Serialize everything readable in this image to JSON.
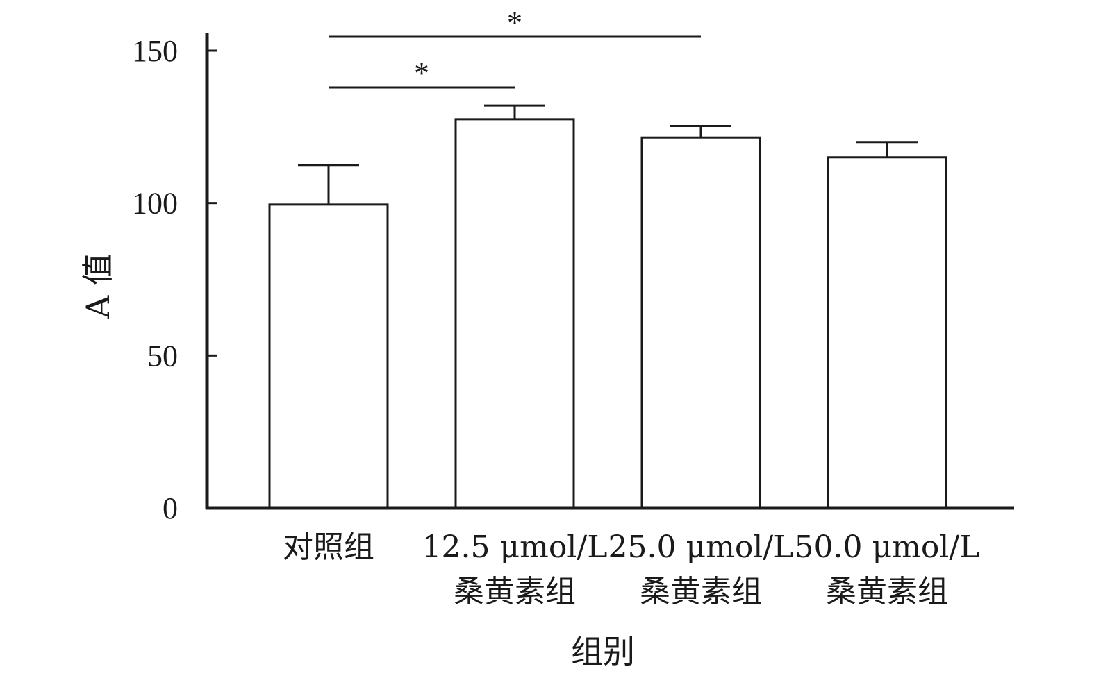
{
  "chart_data": {
    "type": "bar",
    "categories": [
      [
        "对照组"
      ],
      [
        "12.5 μmol/L",
        "桑黄素组"
      ],
      [
        "25.0 μmol/L",
        "桑黄素组"
      ],
      [
        "50.0 μmol/L",
        "桑黄素组"
      ]
    ],
    "values": [
      99.5,
      127.5,
      121.5,
      115
    ],
    "errors": [
      13,
      4.5,
      3.8,
      5
    ],
    "xlabel": "组别",
    "ylabel": "A 值",
    "ylim": [
      0,
      150
    ],
    "yticks": [
      0,
      50,
      100,
      150
    ],
    "ytick_labels": [
      "0",
      "50",
      "100",
      "150"
    ],
    "grid": false,
    "legend": "none",
    "significance": [
      {
        "from": 0,
        "to": 1,
        "label": "*"
      },
      {
        "from": 0,
        "to": 2,
        "label": "*"
      }
    ],
    "colors": {
      "bar_fill": "#ffffff",
      "stroke": "#1a1a1a"
    }
  }
}
